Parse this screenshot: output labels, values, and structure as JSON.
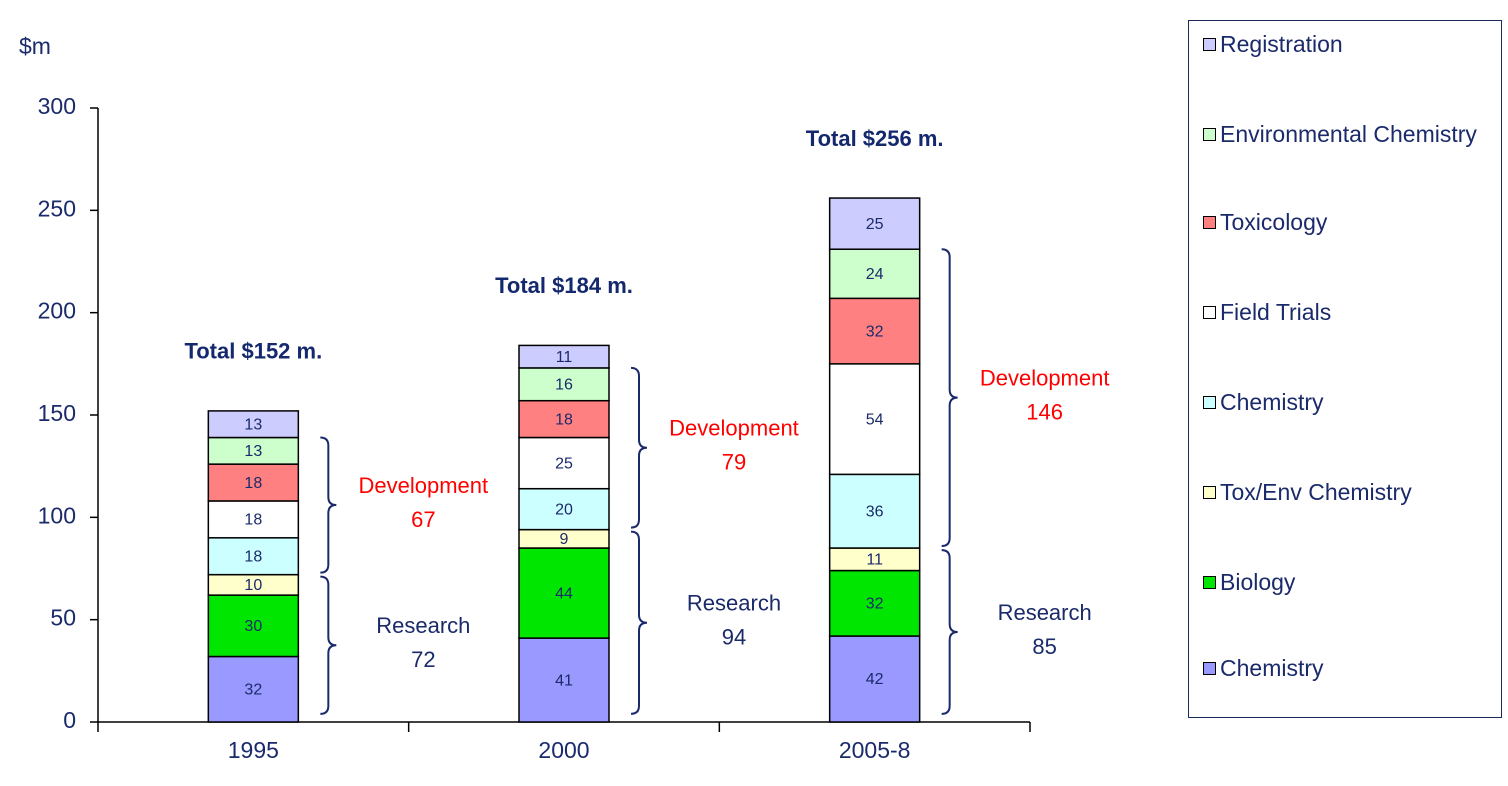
{
  "chart_data": {
    "type": "bar",
    "stacked": true,
    "y_label": "$m",
    "categories": [
      "1995",
      "2000",
      "2005-8"
    ],
    "series": [
      {
        "name": "Chemistry",
        "color": "#9999ff",
        "values": [
          32,
          41,
          42
        ]
      },
      {
        "name": "Biology",
        "color": "#00e600",
        "values": [
          30,
          44,
          32
        ]
      },
      {
        "name": "Tox/Env Chemistry",
        "color": "#ffffcc",
        "values": [
          10,
          9,
          11
        ]
      },
      {
        "name": "Chemistry",
        "color": "#ccffff",
        "values": [
          18,
          20,
          36
        ]
      },
      {
        "name": "Field Trials",
        "color": "#ffffff",
        "values": [
          18,
          25,
          54
        ]
      },
      {
        "name": "Toxicology",
        "color": "#ff8080",
        "values": [
          18,
          18,
          32
        ]
      },
      {
        "name": "Environmental Chemistry",
        "color": "#ccffcc",
        "values": [
          13,
          16,
          24
        ]
      },
      {
        "name": "Registration",
        "color": "#ccccff",
        "values": [
          13,
          11,
          25
        ]
      }
    ],
    "totals": [
      "Total $152 m.",
      "Total $184 m.",
      "Total $256 m."
    ],
    "groups": [
      {
        "name": "Research",
        "values": [
          72,
          94,
          85
        ]
      },
      {
        "name": "Development",
        "values": [
          67,
          79,
          146
        ]
      }
    ],
    "ylim": [
      0,
      300
    ],
    "yticks": [
      0,
      50,
      100,
      150,
      200,
      250,
      300
    ]
  }
}
